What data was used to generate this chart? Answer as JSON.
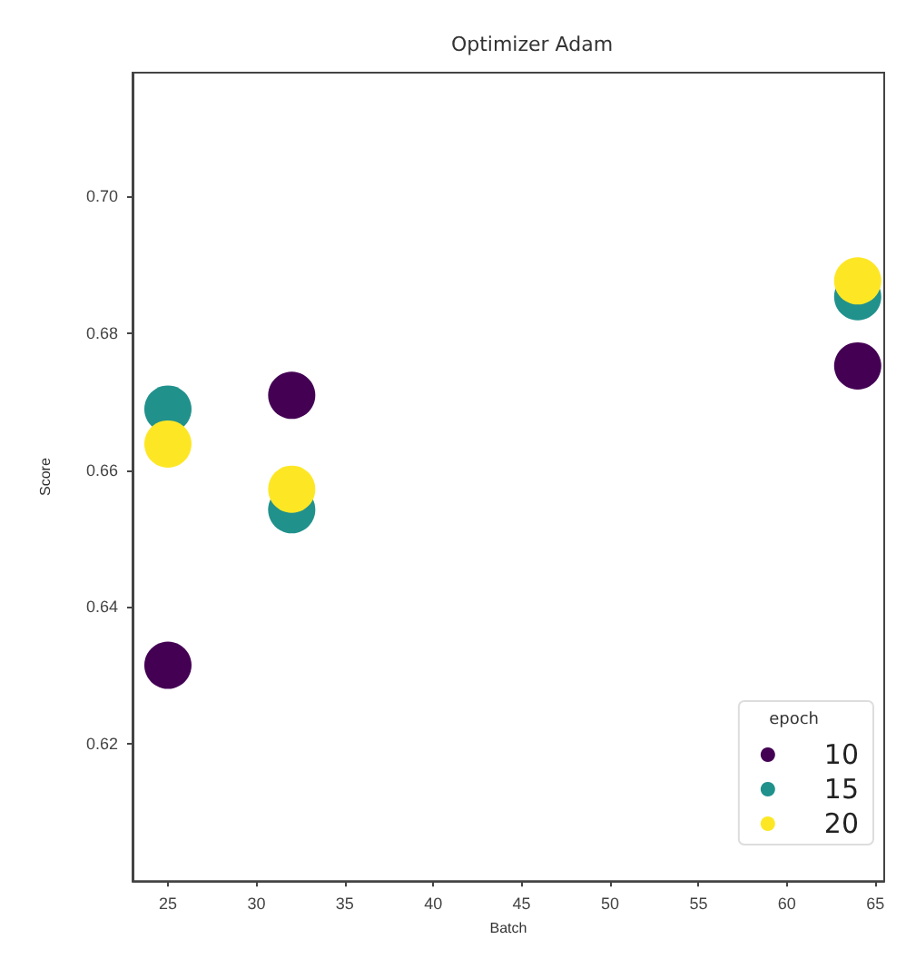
{
  "chart_data": {
    "type": "scatter",
    "title": "Optimizer Adam",
    "xlabel": "Batch",
    "ylabel": "Score",
    "legend_title": "epoch",
    "legend": "bottom right",
    "marker": "circle",
    "grid": false,
    "xlim": [
      23,
      65.5
    ],
    "xticks": [
      25,
      30,
      35,
      40,
      45,
      50,
      55,
      60,
      65
    ],
    "ylim": [
      0.6,
      0.718
    ],
    "yticks": [
      0.62,
      0.64,
      0.66,
      0.68,
      {
        "value": 0.7,
        "label": "0.70"
      }
    ],
    "series": [
      {
        "name": "10",
        "color": "#440154",
        "x": [
          25,
          32,
          64
        ],
        "values": [
          0.6315,
          0.6709,
          0.6752
        ]
      },
      {
        "name": "15",
        "color": "#21918c",
        "x": [
          25,
          32,
          64
        ],
        "values": [
          0.6689,
          0.6542,
          0.6853
        ]
      },
      {
        "name": "20",
        "color": "#fde725",
        "x": [
          25,
          32,
          64
        ],
        "values": [
          0.6638,
          0.6572,
          0.6876
        ]
      }
    ]
  }
}
